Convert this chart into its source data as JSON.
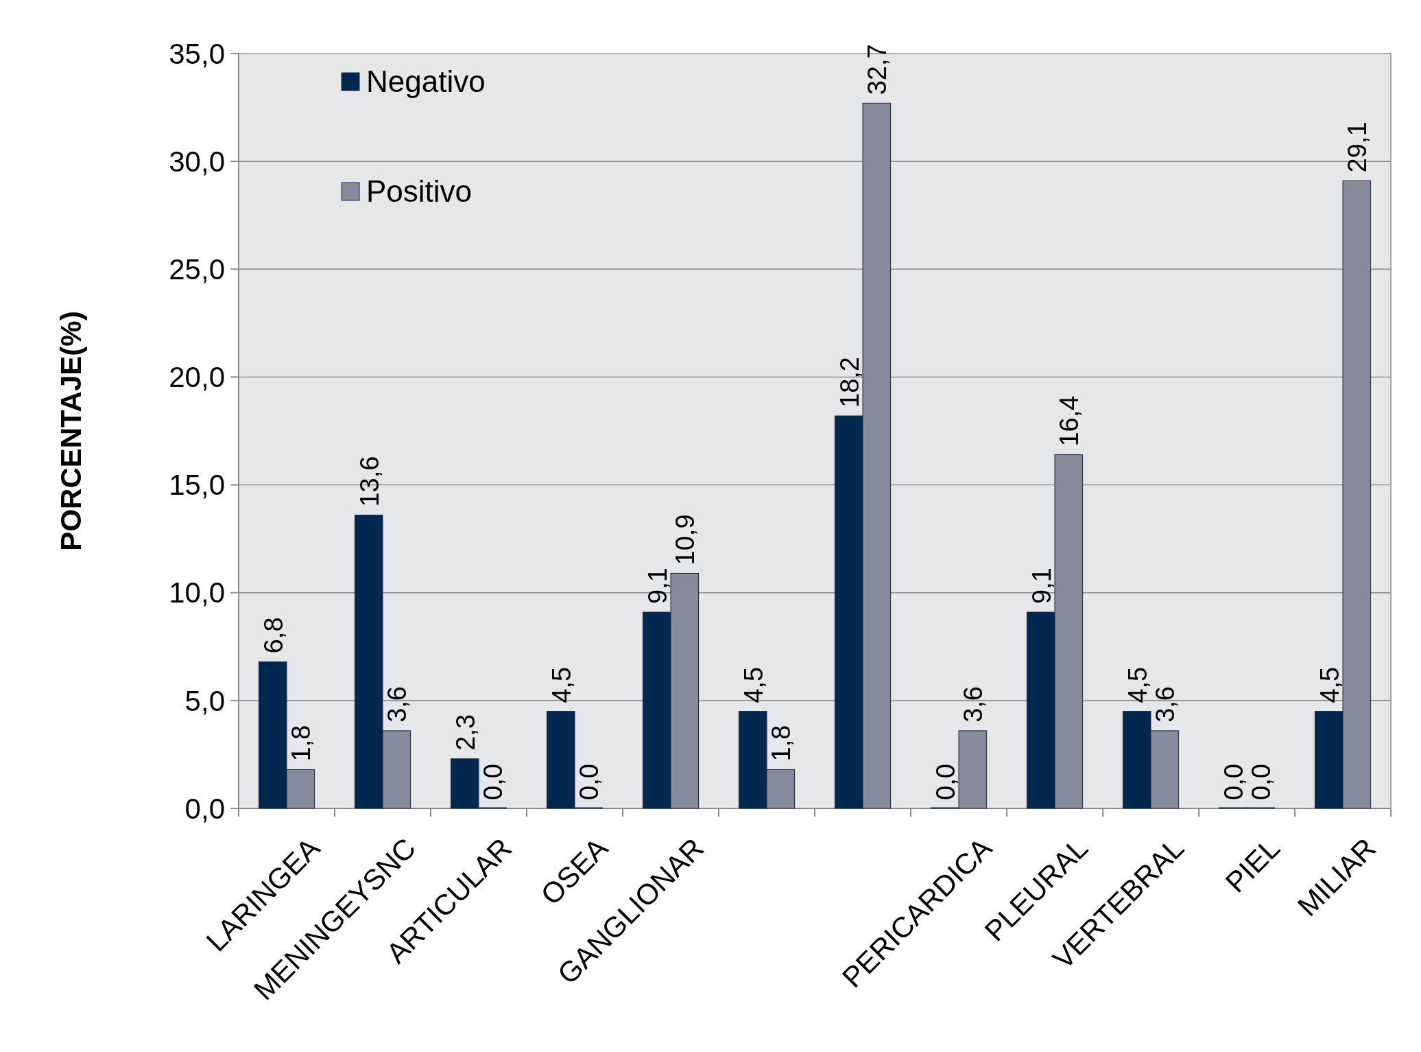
{
  "chart_data": {
    "type": "bar",
    "ylabel": "PORCENTAJE(%)",
    "categories": [
      "LARINGEA",
      "MENINGEYSNC",
      "ARTICULAR",
      "OSEA",
      "GANGLIONAR",
      null,
      null,
      "PERICARDICA",
      "PLEURAL",
      "VERTEBRAL",
      "PIEL",
      "MILIAR"
    ],
    "series": [
      {
        "name": "Negativo",
        "color": "#03284f",
        "values": [
          6.8,
          13.6,
          2.3,
          4.5,
          9.1,
          4.5,
          18.2,
          0.0,
          9.1,
          4.5,
          0.0,
          4.5
        ],
        "value_labels": [
          "6,8",
          "13,6",
          "2,3",
          "4,5",
          "9,1",
          "4,5",
          "18,2",
          "0,0",
          "9,1",
          "4,5",
          "0,0",
          "4,5"
        ]
      },
      {
        "name": "Positivo",
        "color": "#858b99",
        "values": [
          1.8,
          3.6,
          0.0,
          0.0,
          10.9,
          1.8,
          32.7,
          3.6,
          16.4,
          3.6,
          0.0,
          29.1
        ],
        "value_labels": [
          "1,8",
          "3,6",
          "0,0",
          "0,0",
          "10,9",
          "1,8",
          "32,7",
          "3,6",
          "16,4",
          "3,6",
          "0,0",
          "29,1"
        ]
      }
    ],
    "ylim": [
      0,
      35
    ],
    "yticks": [
      {
        "value": 0,
        "label": "0,0"
      },
      {
        "value": 5,
        "label": "5,0"
      },
      {
        "value": 10,
        "label": "10,0"
      },
      {
        "value": 15,
        "label": "15,0"
      },
      {
        "value": 20,
        "label": "20,0"
      },
      {
        "value": 25,
        "label": "25,0"
      },
      {
        "value": 30,
        "label": "30,0"
      },
      {
        "value": 35,
        "label": "35,0"
      }
    ],
    "grid": "y",
    "legend": "top left"
  }
}
